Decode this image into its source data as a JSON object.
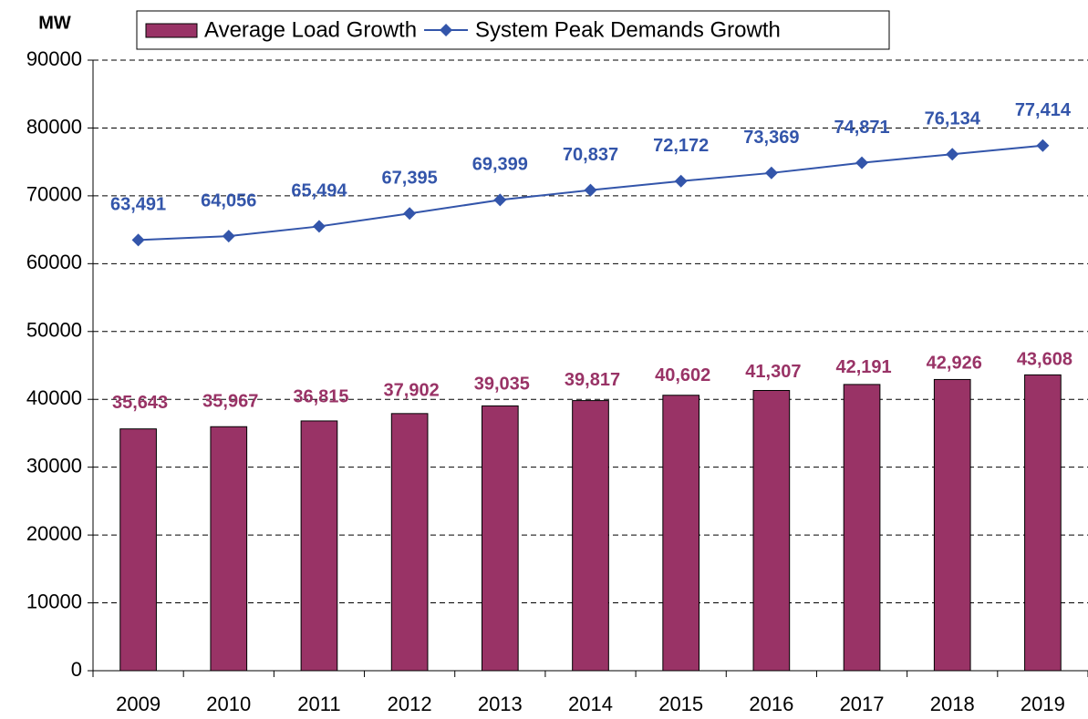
{
  "chart_data": {
    "type": "bar",
    "y_label": "MW",
    "categories": [
      "2009",
      "2010",
      "2011",
      "2012",
      "2013",
      "2014",
      "2015",
      "2016",
      "2017",
      "2018",
      "2019"
    ],
    "series": [
      {
        "name": "Average Load Growth",
        "type": "bar",
        "color": "#993366",
        "values": [
          35643,
          35967,
          36815,
          37902,
          39035,
          39817,
          40602,
          41307,
          42191,
          42926,
          43608
        ],
        "value_labels": [
          "35,643",
          "35,967",
          "36,815",
          "37,902",
          "39,035",
          "39,817",
          "40,602",
          "41,307",
          "42,191",
          "42,926",
          "43,608"
        ]
      },
      {
        "name": "System Peak Demands Growth",
        "type": "line",
        "color": "#3355aa",
        "values": [
          63491,
          64056,
          65494,
          67395,
          69399,
          70837,
          72172,
          73369,
          74871,
          76134,
          77414
        ],
        "value_labels": [
          "63,491",
          "64,056",
          "65,494",
          "67,395",
          "69,399",
          "70,837",
          "72,172",
          "73,369",
          "74,871",
          "76,134",
          "77,414"
        ]
      }
    ],
    "ylim": [
      0,
      90000
    ],
    "yticks": [
      0,
      10000,
      20000,
      30000,
      40000,
      50000,
      60000,
      70000,
      80000,
      90000
    ],
    "grid": true,
    "legend": "top"
  }
}
